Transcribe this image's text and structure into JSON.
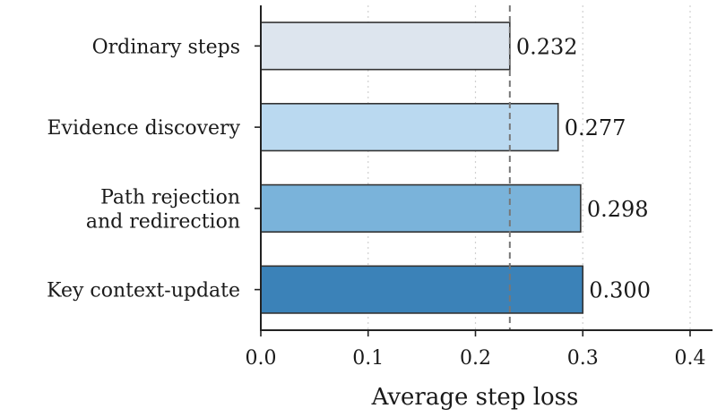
{
  "chart_data": {
    "type": "bar",
    "orientation": "horizontal",
    "categories": [
      [
        "Ordinary steps"
      ],
      [
        "Evidence discovery"
      ],
      [
        "Path rejection",
        "and redirection"
      ],
      [
        "Key context-update"
      ]
    ],
    "values": [
      0.232,
      0.277,
      0.298,
      0.3
    ],
    "value_labels": [
      "0.232",
      "0.277",
      "0.298",
      "0.300"
    ],
    "bar_colors": [
      "#dde5ee",
      "#bad9f0",
      "#7ab3da",
      "#3b82b8"
    ],
    "reference_line": {
      "value": 0.232,
      "style": "dashed",
      "color": "#777777"
    },
    "xlabel": "Average step loss",
    "ylabel": "",
    "xlim": [
      0.0,
      0.4
    ],
    "xticks": [
      0.0,
      0.1,
      0.2,
      0.3,
      0.4
    ],
    "xtick_labels": [
      "0.0",
      "0.1",
      "0.2",
      "0.3",
      "0.4"
    ],
    "grid": "vertical-dotted"
  }
}
